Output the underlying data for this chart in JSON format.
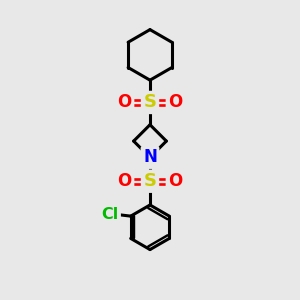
{
  "background_color": "#e8e8e8",
  "bond_color": "#000000",
  "S_color": "#cccc00",
  "O_color": "#ff0000",
  "N_color": "#0000ff",
  "Cl_color": "#00bb00",
  "line_width": 2.2,
  "font_size": 12,
  "figsize": [
    3.0,
    3.0
  ],
  "dpi": 100,
  "xlim": [
    0,
    10
  ],
  "ylim": [
    0,
    10
  ]
}
